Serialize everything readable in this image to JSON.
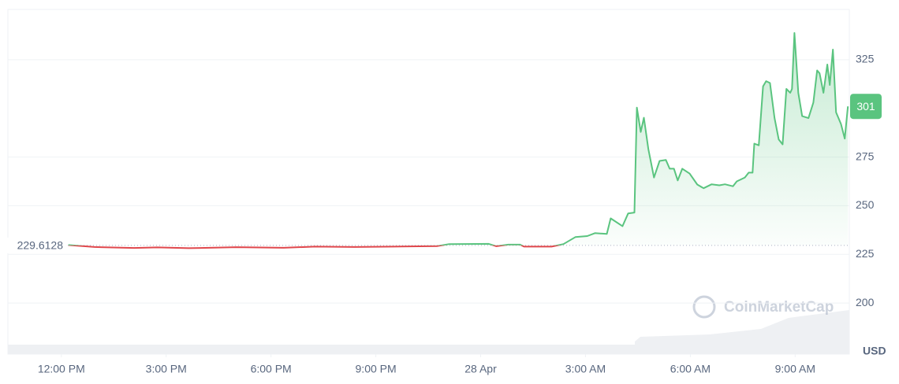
{
  "chart_data": {
    "type": "line",
    "x": [
      12.2,
      12.95,
      14.08,
      14.75,
      15.65,
      17.01,
      18.36,
      19.26,
      20.39,
      21.52,
      22.76,
      23.1,
      24.23,
      24.45,
      24.79,
      25.13,
      25.24,
      26.03,
      26.37,
      26.71,
      27.05,
      27.27,
      27.61,
      27.72,
      28.06,
      28.22,
      28.4,
      28.47,
      28.58,
      28.67,
      28.8,
      28.96,
      29.12,
      29.3,
      29.41,
      29.53,
      29.64,
      29.77,
      29.98,
      30.2,
      30.38,
      30.61,
      30.83,
      30.99,
      31.22,
      31.33,
      31.56,
      31.67,
      31.78,
      31.83,
      31.96,
      32.08,
      32.17,
      32.28,
      32.41,
      32.53,
      32.64,
      32.75,
      32.86,
      32.91,
      32.98,
      33.09,
      33.2,
      33.38,
      33.52,
      33.63,
      33.7,
      33.81,
      33.92,
      33.99,
      34.08,
      34.17,
      34.31,
      34.42,
      34.51
    ],
    "values": [
      229.8,
      228.8,
      228.3,
      228.6,
      228.2,
      228.7,
      228.4,
      229.0,
      228.8,
      229.0,
      229.3,
      230.3,
      230.4,
      229.2,
      230.0,
      230.0,
      229.0,
      229.0,
      230.3,
      233.9,
      234.4,
      235.9,
      235.5,
      243.5,
      239.5,
      246.0,
      246.5,
      300.4,
      287.9,
      295.2,
      279.0,
      264.5,
      273.0,
      273.5,
      269.0,
      269.0,
      263.0,
      269.0,
      266.5,
      260.9,
      259.0,
      261.0,
      260.5,
      261.0,
      260.0,
      262.5,
      264.5,
      267.0,
      267.0,
      281.9,
      281.0,
      311.3,
      314.0,
      313.0,
      295.0,
      284.0,
      281.5,
      310.0,
      308.0,
      310.0,
      338.7,
      308.0,
      296.0,
      295.0,
      303.0,
      319.5,
      318.0,
      308.0,
      322.5,
      312.0,
      330.2,
      298.0,
      292.0,
      284.5,
      301.0
    ],
    "color_above": "#5ac47f",
    "color_below": "#e0474c",
    "baseline": 229.6128,
    "current_price": 301,
    "currency": "USD",
    "watermark": "CoinMarketCap",
    "xlim": [
      10.47,
      34.55
    ],
    "xticks": [
      {
        "value": 12,
        "label": "12:00 PM"
      },
      {
        "value": 15,
        "label": "3:00 PM"
      },
      {
        "value": 18,
        "label": "6:00 PM"
      },
      {
        "value": 21,
        "label": "9:00 PM"
      },
      {
        "value": 24,
        "label": "28 Apr"
      },
      {
        "value": 27,
        "label": "3:00 AM"
      },
      {
        "value": 30,
        "label": "6:00 AM"
      },
      {
        "value": 33,
        "label": "9:00 AM"
      }
    ],
    "ylim": [
      173.8,
      350.8
    ],
    "yticks": [
      200,
      225,
      250,
      275,
      325
    ],
    "grid": true
  }
}
